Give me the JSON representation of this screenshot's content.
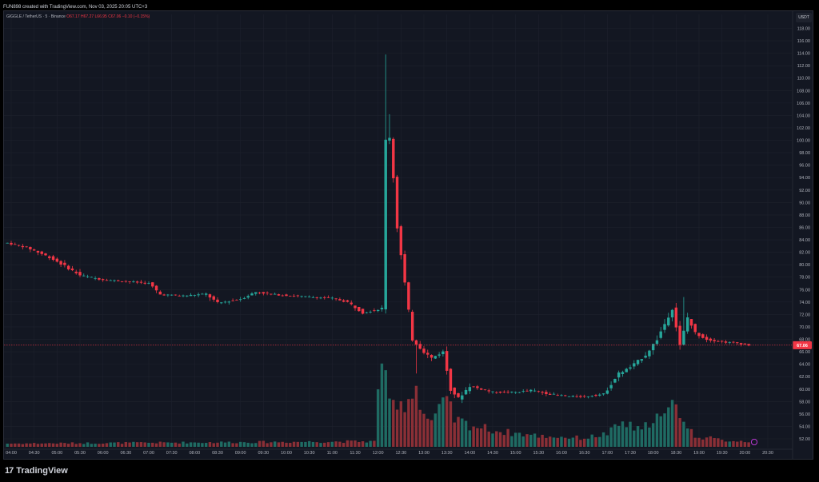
{
  "header": {
    "attribution": "FUN898 created with TradingView.com, Nov 03, 2025 20:05 UTC+3"
  },
  "legend": {
    "symbol": "GIGGLE / TetherUS · 5 · Binance",
    "ohlc": "O67.17 H67.27 L66.95 C67.06 −0.10 (−0.15%)"
  },
  "currency_chip": "USDT",
  "branding": {
    "mark": "17",
    "name": "TradingView"
  },
  "chart_data": {
    "type": "candlestick",
    "title": "GIGGLE / TetherUS · 5 · Binance",
    "interval": "5m",
    "ylim": [
      51,
      119
    ],
    "y_ticks": [
      52,
      54,
      56,
      58,
      60,
      62,
      64,
      66,
      68,
      70,
      72,
      74,
      76,
      78,
      80,
      82,
      84,
      86,
      88,
      90,
      92,
      94,
      96,
      98,
      100,
      102,
      104,
      106,
      108,
      110,
      112,
      114,
      116,
      118
    ],
    "x_ticks": [
      "04:00",
      "04:30",
      "05:00",
      "05:30",
      "06:00",
      "06:30",
      "07:00",
      "07:30",
      "08:00",
      "08:30",
      "09:00",
      "09:30",
      "10:00",
      "10:30",
      "11:00",
      "11:30",
      "12:00",
      "12:30",
      "13:00",
      "13:30",
      "14:00",
      "14:30",
      "15:00",
      "15:30",
      "16:00",
      "16:30",
      "17:00",
      "17:30",
      "18:00",
      "18:30",
      "19:00",
      "19:30",
      "20:00",
      "20:30"
    ],
    "last_price": 67.06,
    "last_price_label": "67.06",
    "colors": {
      "up": "#26a69a",
      "down": "#f23645",
      "up_volume": "#1f6b63",
      "down_volume": "#8a2f36",
      "background": "#131722",
      "grid": "#1e222d"
    },
    "grid": true,
    "keyframes": [
      [
        "03:55",
        83.5
      ],
      [
        "04:20",
        82.8
      ],
      [
        "04:50",
        81.2
      ],
      [
        "05:10",
        79.8
      ],
      [
        "05:30",
        78.3
      ],
      [
        "06:00",
        77.6
      ],
      [
        "06:30",
        77.3
      ],
      [
        "07:00",
        77.0
      ],
      [
        "07:15",
        75.2
      ],
      [
        "07:45",
        75.0
      ],
      [
        "08:15",
        75.3
      ],
      [
        "08:30",
        73.8
      ],
      [
        "09:00",
        74.5
      ],
      [
        "09:20",
        75.6
      ],
      [
        "09:45",
        75.2
      ],
      [
        "10:30",
        74.8
      ],
      [
        "11:00",
        74.6
      ],
      [
        "11:20",
        74.0
      ],
      [
        "11:40",
        72.3
      ],
      [
        "12:00",
        72.8
      ],
      [
        "12:05",
        73.0
      ],
      [
        "12:10",
        100.0
      ],
      [
        "12:15",
        100.5
      ],
      [
        "12:20",
        94.0
      ],
      [
        "12:25",
        86.0
      ],
      [
        "12:35",
        77.0
      ],
      [
        "12:45",
        68.0
      ],
      [
        "13:00",
        66.0
      ],
      [
        "13:10",
        65.0
      ],
      [
        "13:25",
        66.0
      ],
      [
        "13:35",
        60.0
      ],
      [
        "13:45",
        58.5
      ],
      [
        "14:00",
        60.5
      ],
      [
        "14:30",
        59.5
      ],
      [
        "15:00",
        59.5
      ],
      [
        "15:20",
        59.8
      ],
      [
        "15:45",
        59.2
      ],
      [
        "16:10",
        58.8
      ],
      [
        "16:30",
        58.8
      ],
      [
        "16:55",
        59.2
      ],
      [
        "17:15",
        62.5
      ],
      [
        "17:30",
        63.5
      ],
      [
        "17:50",
        65.5
      ],
      [
        "18:05",
        68.0
      ],
      [
        "18:15",
        70.5
      ],
      [
        "18:25",
        73.0
      ],
      [
        "18:35",
        67.0
      ],
      [
        "18:45",
        71.5
      ],
      [
        "18:55",
        69.0
      ],
      [
        "19:10",
        68.0
      ],
      [
        "19:30",
        67.6
      ],
      [
        "19:50",
        67.4
      ],
      [
        "20:05",
        67.06
      ]
    ],
    "volume_profile": [
      [
        "03:55",
        0.03
      ],
      [
        "11:55",
        0.05
      ],
      [
        "12:05",
        0.88
      ],
      [
        "12:10",
        0.76
      ],
      [
        "12:15",
        0.36
      ],
      [
        "12:25",
        0.33
      ],
      [
        "12:40",
        0.45
      ],
      [
        "12:50",
        0.56
      ],
      [
        "13:00",
        0.3
      ],
      [
        "13:10",
        0.24
      ],
      [
        "13:30",
        0.42
      ],
      [
        "13:40",
        0.25
      ],
      [
        "14:00",
        0.2
      ],
      [
        "14:40",
        0.14
      ],
      [
        "15:30",
        0.1
      ],
      [
        "16:30",
        0.08
      ],
      [
        "17:00",
        0.12
      ],
      [
        "17:20",
        0.22
      ],
      [
        "17:45",
        0.14
      ],
      [
        "18:00",
        0.28
      ],
      [
        "18:15",
        0.26
      ],
      [
        "18:30",
        0.44
      ],
      [
        "18:40",
        0.22
      ],
      [
        "18:55",
        0.1
      ],
      [
        "19:30",
        0.06
      ],
      [
        "20:05",
        0.05
      ]
    ]
  }
}
